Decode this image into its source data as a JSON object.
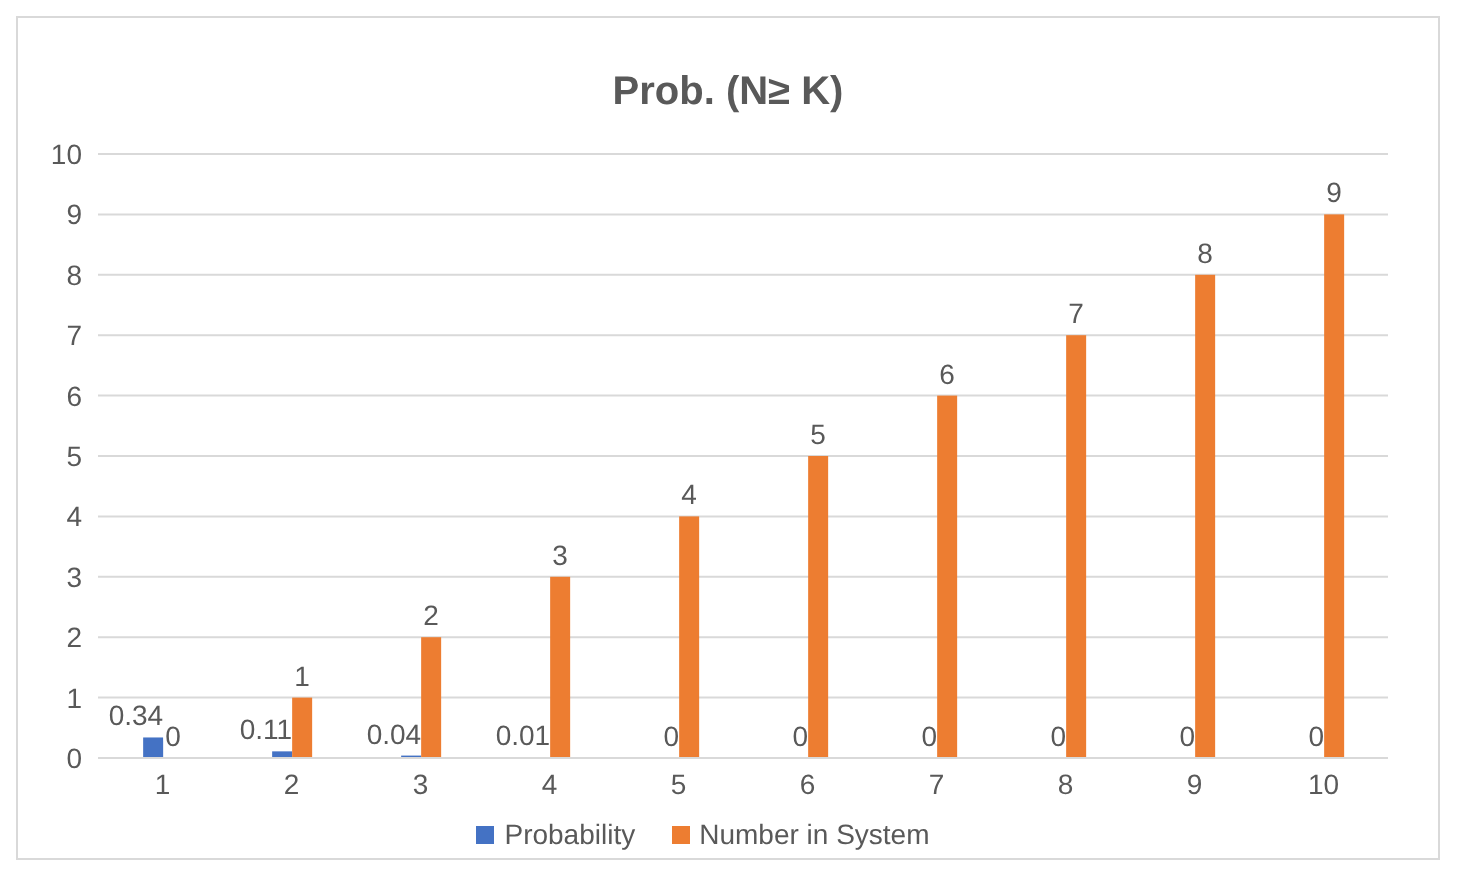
{
  "chart_data": {
    "type": "bar",
    "title": "Prob. (N≥ K)",
    "categories": [
      "1",
      "2",
      "3",
      "4",
      "5",
      "6",
      "7",
      "8",
      "9",
      "10"
    ],
    "series": [
      {
        "name": "Probability",
        "color": "#4472c4",
        "values": [
          0.34,
          0.11,
          0.04,
          0.01,
          0,
          0,
          0,
          0,
          0,
          0
        ]
      },
      {
        "name": "Number in System",
        "color": "#ed7d31",
        "values": [
          0,
          1,
          2,
          3,
          4,
          5,
          6,
          7,
          8,
          9
        ]
      }
    ],
    "ylim": [
      0,
      10
    ],
    "yticks": [
      0,
      1,
      2,
      3,
      4,
      5,
      6,
      7,
      8,
      9,
      10
    ],
    "grid": "y",
    "legend": "bottom",
    "data_labels": true
  }
}
